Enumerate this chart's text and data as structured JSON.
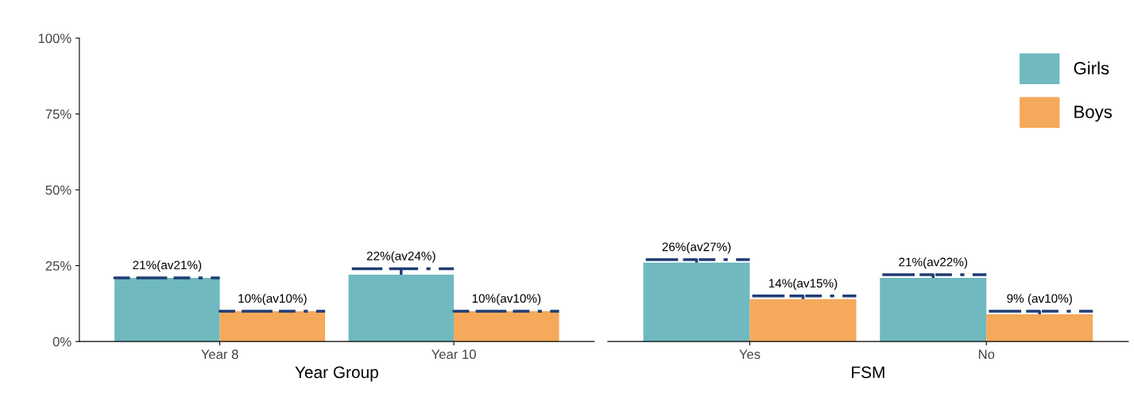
{
  "chart_data": [
    {
      "type": "bar",
      "xlabel": "Year Group",
      "categories": [
        "Year 8",
        "Year 10"
      ],
      "ylim": [
        0,
        100
      ],
      "yticks": [
        {
          "value": 0,
          "label": "0%"
        },
        {
          "value": 25,
          "label": "25%"
        },
        {
          "value": 50,
          "label": "50%"
        },
        {
          "value": 75,
          "label": "75%"
        },
        {
          "value": 100,
          "label": "100%"
        }
      ],
      "grid": false,
      "legend": false,
      "series": [
        {
          "color": "#6fb9bf",
          "values": [
            21,
            22
          ],
          "errors": [
            [
              21,
              21
            ],
            [
              22,
              24
            ]
          ],
          "value_labels": [
            "21%(av21%)",
            "22%(av24%)"
          ]
        },
        {
          "color": "#f5a95a",
          "values": [
            10,
            10
          ],
          "errors": [
            [
              10,
              10
            ],
            [
              10,
              10
            ]
          ],
          "value_labels": [
            "10%(av10%)",
            "10%(av10%)"
          ]
        }
      ]
    },
    {
      "type": "bar",
      "xlabel": "FSM",
      "categories": [
        "Yes",
        "No"
      ],
      "ylim": [
        0,
        100
      ],
      "tick_labels": "x",
      "grid": false,
      "legend": "top right",
      "series": [
        {
          "name": "Girls",
          "color": "#6fb9bf",
          "values": [
            26,
            21
          ],
          "errors": [
            [
              26,
              27
            ],
            [
              21,
              22
            ]
          ],
          "value_labels": [
            "26%(av27%)",
            "21%(av22%)"
          ]
        },
        {
          "name": "Boys",
          "color": "#f5a95a",
          "values": [
            14,
            9
          ],
          "errors": [
            [
              14,
              15
            ],
            [
              9,
              10
            ]
          ],
          "value_labels": [
            "14%(av15%)",
            "9% (av10%)"
          ]
        }
      ]
    }
  ]
}
